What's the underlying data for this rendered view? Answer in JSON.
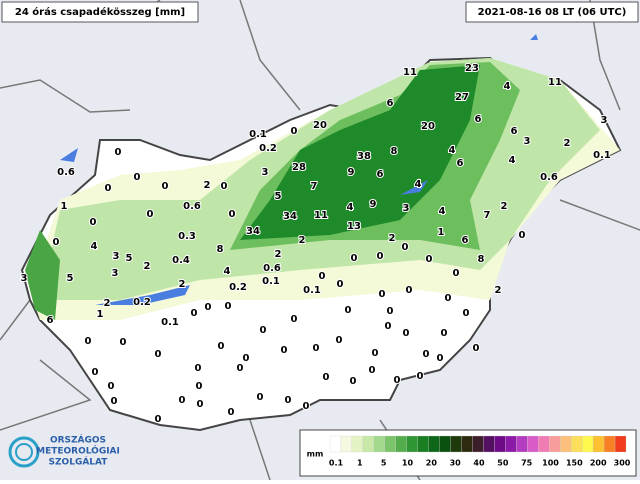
{
  "header": {
    "title": "24 órás csapadékösszeg [mm]",
    "timestamp": "2021-08-16 08 LT (06 UTC)"
  },
  "stations": [
    11,
    23,
    27,
    4,
    11,
    6,
    20,
    0,
    0.1,
    0.2,
    20,
    6,
    6,
    3,
    4,
    3,
    2,
    0.1,
    38,
    8,
    28,
    3,
    9,
    6,
    6,
    4,
    0.6,
    7,
    4,
    5,
    4,
    9,
    3,
    4,
    2,
    7,
    34,
    11,
    0,
    13,
    34,
    1,
    0,
    6,
    2,
    2,
    0,
    8,
    2,
    0,
    0,
    0,
    8,
    4,
    0.6,
    0,
    0,
    0.1,
    0.2,
    0.1,
    0,
    0,
    0,
    2,
    0,
    0.6,
    0,
    0,
    0,
    0,
    2,
    0,
    1,
    0.6,
    0,
    0,
    0,
    4,
    0.3,
    3,
    5,
    2,
    0.4,
    3,
    2,
    3,
    5,
    0,
    0.2,
    2,
    1,
    6,
    0.1,
    0,
    0,
    0,
    0,
    0,
    0,
    0,
    0,
    0,
    0,
    0,
    0,
    0,
    0,
    0,
    0,
    0,
    0,
    0,
    0,
    0,
    0,
    0,
    0,
    0,
    0,
    0,
    0,
    0,
    0,
    0,
    0,
    0,
    0,
    0,
    0,
    0,
    0,
    0,
    0
  ],
  "legend": {
    "unit": "mm",
    "labels": [
      0.1,
      1,
      5,
      10,
      20,
      30,
      40,
      50,
      75,
      100,
      150,
      200,
      300
    ],
    "colors": [
      "#ffffff",
      "#f4f9e0",
      "#e4f3c4",
      "#c8e8a8",
      "#a4d88c",
      "#7cc46c",
      "#54ad4c",
      "#2e9632",
      "#1a7e22",
      "#0e6618",
      "#0a5010",
      "#1e3a0c",
      "#2e2a10",
      "#3c1e2a",
      "#541060",
      "#6e0a86",
      "#8c1aa8",
      "#b43cc0",
      "#d85cc8",
      "#f07cb4",
      "#f89c9c",
      "#fcc07c",
      "#fce05c",
      "#fcf84c",
      "#fcc030",
      "#f88024",
      "#f03c1c"
    ]
  },
  "logo": {
    "lines": [
      "ORSZÁGOS",
      "METEOROLÓGIAI",
      "SZOLGÁLAT"
    ]
  }
}
